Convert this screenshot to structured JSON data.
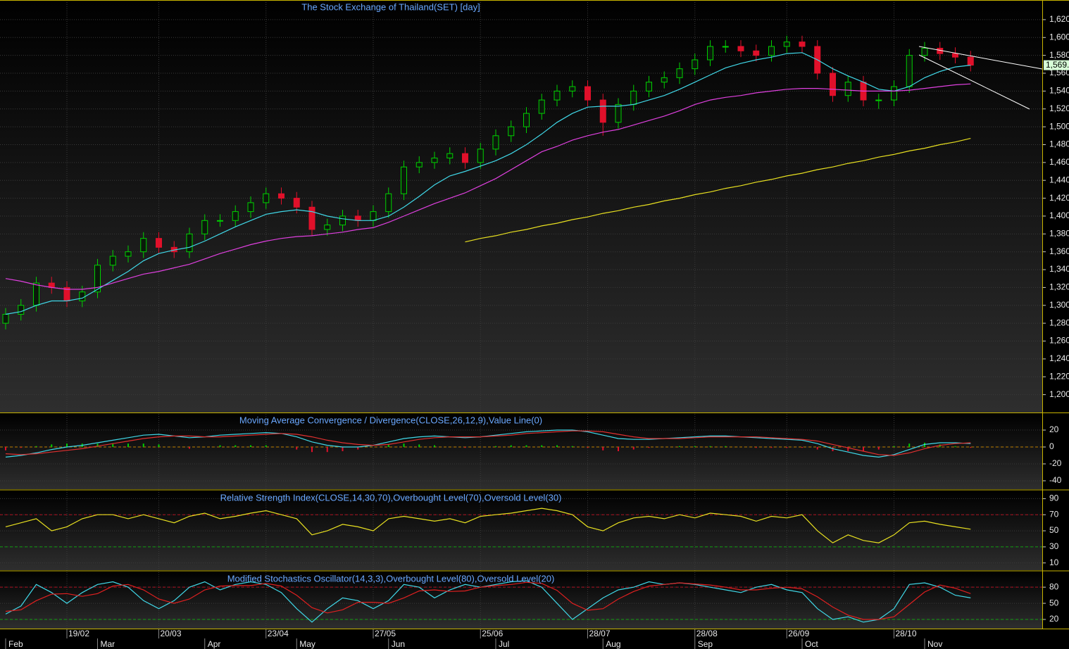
{
  "chart_data": [
    {
      "type": "candlestick",
      "title": "The Stock Exchange of Thailand(SET) [day]",
      "ylim": [
        1180,
        1642
      ],
      "yticks": [
        {
          "value": 1200,
          "label": "1,200"
        },
        {
          "value": 1220,
          "label": "1,220"
        },
        {
          "value": 1240,
          "label": "1,240"
        },
        {
          "value": 1260,
          "label": "1,260"
        },
        {
          "value": 1280,
          "label": "1,280"
        },
        {
          "value": 1300,
          "label": "1,300"
        },
        {
          "value": 1320,
          "label": "1,320"
        },
        {
          "value": 1340,
          "label": "1,340"
        },
        {
          "value": 1360,
          "label": "1,360"
        },
        {
          "value": 1380,
          "label": "1,380"
        },
        {
          "value": 1400,
          "label": "1,400"
        },
        {
          "value": 1420,
          "label": "1,420"
        },
        {
          "value": 1440,
          "label": "1,440"
        },
        {
          "value": 1460,
          "label": "1,460"
        },
        {
          "value": 1480,
          "label": "1,480"
        },
        {
          "value": 1500,
          "label": "1,500"
        },
        {
          "value": 1520,
          "label": "1,520"
        },
        {
          "value": 1540,
          "label": "1,540"
        },
        {
          "value": 1560,
          "label": "1,560"
        },
        {
          "value": 1580,
          "label": "1,580"
        },
        {
          "value": 1600,
          "label": "1,600"
        },
        {
          "value": 1620,
          "label": "1,620"
        }
      ],
      "last_price_label": "1,569.",
      "date_labels": [
        null,
        null,
        null,
        null,
        "19/02",
        null,
        null,
        null,
        null,
        null,
        "20/03",
        null,
        null,
        null,
        null,
        null,
        null,
        "23/04",
        null,
        null,
        null,
        null,
        null,
        null,
        "27/05",
        null,
        null,
        null,
        null,
        null,
        null,
        "25/06",
        null,
        null,
        null,
        null,
        null,
        null,
        "28/07",
        null,
        null,
        null,
        null,
        null,
        null,
        "28/08",
        null,
        null,
        null,
        null,
        null,
        "26/09",
        null,
        null,
        null,
        null,
        null,
        null,
        "28/10",
        null,
        null,
        null,
        null,
        null
      ],
      "month_labels": [
        "Feb",
        null,
        null,
        null,
        null,
        null,
        "Mar",
        null,
        null,
        null,
        null,
        null,
        null,
        "Apr",
        null,
        null,
        null,
        null,
        null,
        "May",
        null,
        null,
        null,
        null,
        null,
        "Jun",
        null,
        null,
        null,
        null,
        null,
        null,
        "Jul",
        null,
        null,
        null,
        null,
        null,
        null,
        "Aug",
        null,
        null,
        null,
        null,
        null,
        "Sep",
        null,
        null,
        null,
        null,
        null,
        null,
        "Oct",
        null,
        null,
        null,
        null,
        null,
        null,
        null,
        "Nov",
        null,
        null,
        null
      ],
      "up_color": "#00d000",
      "down_color": "#e0102a",
      "open": [
        1280,
        1290,
        1300,
        1325,
        1320,
        1305,
        1315,
        1345,
        1355,
        1360,
        1375,
        1365,
        1360,
        1380,
        1395,
        1395,
        1405,
        1415,
        1425,
        1420,
        1410,
        1385,
        1390,
        1400,
        1395,
        1405,
        1425,
        1455,
        1460,
        1465,
        1470,
        1460,
        1475,
        1490,
        1500,
        1515,
        1530,
        1540,
        1545,
        1530,
        1505,
        1525,
        1540,
        1550,
        1555,
        1565,
        1575,
        1590,
        1590,
        1585,
        1580,
        1590,
        1595,
        1590,
        1560,
        1535,
        1550,
        1530,
        1530,
        1545,
        1580,
        1588,
        1582,
        1578
      ],
      "high": [
        1297,
        1307,
        1332,
        1332,
        1327,
        1322,
        1352,
        1362,
        1367,
        1382,
        1382,
        1372,
        1387,
        1402,
        1402,
        1412,
        1422,
        1432,
        1432,
        1427,
        1417,
        1397,
        1407,
        1407,
        1412,
        1432,
        1462,
        1467,
        1472,
        1477,
        1477,
        1482,
        1497,
        1507,
        1522,
        1537,
        1547,
        1552,
        1552,
        1537,
        1532,
        1547,
        1557,
        1562,
        1572,
        1582,
        1597,
        1597,
        1597,
        1592,
        1597,
        1602,
        1602,
        1597,
        1567,
        1557,
        1557,
        1537,
        1552,
        1587,
        1595,
        1595,
        1589,
        1585
      ],
      "low": [
        1273,
        1283,
        1293,
        1313,
        1298,
        1298,
        1308,
        1338,
        1348,
        1353,
        1358,
        1353,
        1353,
        1373,
        1388,
        1388,
        1398,
        1408,
        1413,
        1403,
        1378,
        1378,
        1383,
        1388,
        1388,
        1398,
        1418,
        1448,
        1453,
        1458,
        1453,
        1453,
        1468,
        1483,
        1493,
        1508,
        1523,
        1533,
        1523,
        1490,
        1498,
        1518,
        1533,
        1543,
        1548,
        1558,
        1568,
        1583,
        1578,
        1573,
        1573,
        1583,
        1583,
        1553,
        1528,
        1528,
        1523,
        1520,
        1523,
        1538,
        1573,
        1575,
        1571,
        1562
      ],
      "close": [
        1290,
        1300,
        1325,
        1320,
        1305,
        1315,
        1345,
        1355,
        1360,
        1375,
        1365,
        1360,
        1380,
        1395,
        1395,
        1405,
        1415,
        1425,
        1420,
        1410,
        1385,
        1390,
        1400,
        1395,
        1405,
        1425,
        1455,
        1460,
        1465,
        1470,
        1460,
        1475,
        1490,
        1500,
        1515,
        1530,
        1540,
        1545,
        1530,
        1505,
        1525,
        1540,
        1550,
        1555,
        1565,
        1575,
        1590,
        1590,
        1585,
        1580,
        1590,
        1595,
        1590,
        1560,
        1535,
        1550,
        1530,
        1530,
        1545,
        1580,
        1588,
        1582,
        1578,
        1569
      ],
      "series": [
        {
          "color": "#40d8e8",
          "values": [
            1290,
            1293,
            1300,
            1305,
            1305,
            1308,
            1318,
            1328,
            1338,
            1350,
            1358,
            1362,
            1365,
            1372,
            1380,
            1388,
            1395,
            1402,
            1405,
            1407,
            1405,
            1400,
            1397,
            1395,
            1395,
            1400,
            1410,
            1422,
            1435,
            1445,
            1450,
            1456,
            1462,
            1470,
            1480,
            1492,
            1505,
            1515,
            1522,
            1523,
            1523,
            1525,
            1530,
            1535,
            1542,
            1550,
            1558,
            1566,
            1571,
            1575,
            1578,
            1582,
            1583,
            1575,
            1565,
            1557,
            1550,
            1542,
            1540,
            1545,
            1555,
            1562,
            1567,
            1569
          ]
        },
        {
          "color": "#e040e0",
          "values": [
            1330,
            1327,
            1323,
            1320,
            1318,
            1318,
            1320,
            1325,
            1330,
            1335,
            1338,
            1342,
            1346,
            1352,
            1358,
            1363,
            1368,
            1372,
            1375,
            1377,
            1378,
            1380,
            1382,
            1385,
            1387,
            1393,
            1400,
            1407,
            1414,
            1420,
            1426,
            1434,
            1442,
            1452,
            1462,
            1472,
            1478,
            1485,
            1490,
            1494,
            1497,
            1502,
            1507,
            1512,
            1518,
            1525,
            1530,
            1533,
            1535,
            1538,
            1540,
            1542,
            1543,
            1543,
            1542,
            1541,
            1540,
            1540,
            1540,
            1541,
            1543,
            1545,
            1547,
            1548
          ]
        },
        {
          "color": "#e8e020",
          "values": [
            null,
            null,
            null,
            null,
            null,
            null,
            null,
            null,
            null,
            null,
            null,
            null,
            null,
            null,
            null,
            null,
            null,
            null,
            null,
            null,
            null,
            null,
            null,
            null,
            null,
            null,
            null,
            null,
            null,
            null,
            1371,
            1375,
            1378,
            1382,
            1385,
            1389,
            1392,
            1396,
            1399,
            1403,
            1406,
            1410,
            1413,
            1417,
            1420,
            1424,
            1427,
            1431,
            1434,
            1438,
            1441,
            1445,
            1448,
            1452,
            1455,
            1459,
            1462,
            1466,
            1469,
            1473,
            1476,
            1480,
            1483,
            1487
          ]
        }
      ]
    },
    {
      "type": "macd",
      "title": "Moving Average Convergence / Divergence(CLOSE,26,12,9),Value Line(0)",
      "ylim": [
        -50,
        40
      ],
      "yticks": [
        20,
        0,
        -20,
        -40
      ],
      "levels": [
        {
          "value": 0,
          "color": "#c08000"
        }
      ],
      "up_color": "#00d000",
      "down_color": "#e0102a",
      "histogram": [
        -4,
        -1,
        1,
        3,
        4,
        4,
        4,
        4,
        4,
        4,
        3,
        0,
        -2,
        0,
        2,
        2,
        2,
        2,
        0,
        -3,
        -6,
        -6,
        -5,
        -3,
        0,
        3,
        4,
        3,
        2,
        0,
        -1,
        0,
        1,
        2,
        2,
        2,
        2,
        1,
        -1,
        -4,
        -5,
        -3,
        -1,
        0,
        1,
        1,
        1,
        1,
        0,
        -1,
        -1,
        -1,
        -1,
        -3,
        -5,
        -5,
        -5,
        -3,
        1,
        4,
        5,
        3,
        1,
        -1
      ],
      "series": [
        {
          "color": "#40d8e8",
          "values": [
            -12,
            -10,
            -7,
            -3,
            0,
            2,
            5,
            8,
            11,
            14,
            15,
            13,
            11,
            12,
            14,
            15,
            16,
            17,
            16,
            12,
            6,
            2,
            0,
            0,
            2,
            6,
            10,
            12,
            13,
            12,
            11,
            12,
            14,
            16,
            18,
            19,
            20,
            20,
            18,
            14,
            10,
            9,
            9,
            10,
            11,
            12,
            13,
            13,
            12,
            11,
            10,
            9,
            8,
            4,
            -2,
            -6,
            -10,
            -12,
            -9,
            -3,
            3,
            5,
            5,
            4
          ]
        },
        {
          "color": "#e03030",
          "values": [
            -8,
            -9,
            -8,
            -6,
            -4,
            -2,
            1,
            4,
            7,
            10,
            12,
            13,
            13,
            12,
            12,
            13,
            14,
            15,
            16,
            15,
            12,
            8,
            5,
            3,
            2,
            3,
            6,
            9,
            11,
            12,
            12,
            12,
            13,
            14,
            16,
            17,
            18,
            19,
            19,
            18,
            15,
            12,
            10,
            10,
            10,
            11,
            12,
            12,
            12,
            12,
            11,
            10,
            9,
            7,
            3,
            -1,
            -5,
            -9,
            -10,
            -7,
            -2,
            2,
            4,
            5
          ]
        }
      ]
    },
    {
      "type": "line",
      "title": "Relative Strength Index(CLOSE,14,30,70),Overbought Level(70),Oversold Level(30)",
      "ylim": [
        1,
        100
      ],
      "yticks": [
        10,
        30,
        50,
        70,
        90
      ],
      "levels": [
        {
          "value": 70,
          "color": "#b01020"
        },
        {
          "value": 30,
          "color": "#10a010"
        }
      ],
      "series": [
        {
          "color": "#e8e020",
          "values": [
            55,
            60,
            65,
            50,
            55,
            65,
            70,
            70,
            65,
            70,
            65,
            60,
            68,
            72,
            65,
            68,
            72,
            75,
            70,
            65,
            45,
            50,
            58,
            55,
            50,
            65,
            68,
            65,
            62,
            65,
            60,
            68,
            70,
            72,
            75,
            78,
            75,
            70,
            55,
            50,
            60,
            66,
            68,
            65,
            70,
            66,
            72,
            70,
            68,
            62,
            68,
            66,
            70,
            50,
            35,
            45,
            38,
            35,
            45,
            60,
            62,
            58,
            55,
            52
          ]
        }
      ]
    },
    {
      "type": "line",
      "title": "Modified Stochastics Oscillator(14,3,3),Overbought Level(80),Oversold Level(20)",
      "ylim": [
        3,
        109
      ],
      "yticks": [
        20,
        50,
        80
      ],
      "levels": [
        {
          "value": 80,
          "color": "#b01020"
        },
        {
          "value": 20,
          "color": "#10a010"
        }
      ],
      "series": [
        {
          "color": "#40d8e8",
          "values": [
            30,
            45,
            85,
            70,
            50,
            70,
            85,
            90,
            80,
            55,
            40,
            55,
            80,
            90,
            75,
            85,
            90,
            85,
            70,
            40,
            15,
            40,
            60,
            55,
            40,
            55,
            85,
            80,
            60,
            75,
            85,
            80,
            85,
            90,
            92,
            80,
            50,
            20,
            40,
            60,
            75,
            80,
            90,
            85,
            88,
            85,
            80,
            75,
            70,
            80,
            85,
            75,
            70,
            40,
            20,
            25,
            15,
            20,
            40,
            85,
            88,
            80,
            65,
            60
          ]
        },
        {
          "color": "#e02020",
          "values": [
            35,
            38,
            55,
            67,
            68,
            63,
            68,
            82,
            85,
            75,
            58,
            50,
            58,
            75,
            82,
            83,
            83,
            87,
            82,
            65,
            42,
            32,
            38,
            52,
            52,
            50,
            60,
            73,
            75,
            72,
            73,
            80,
            83,
            85,
            89,
            87,
            74,
            50,
            37,
            40,
            58,
            72,
            82,
            85,
            88,
            86,
            84,
            80,
            75,
            75,
            78,
            80,
            77,
            62,
            43,
            28,
            20,
            20,
            25,
            48,
            71,
            84,
            78,
            68
          ]
        }
      ]
    }
  ]
}
